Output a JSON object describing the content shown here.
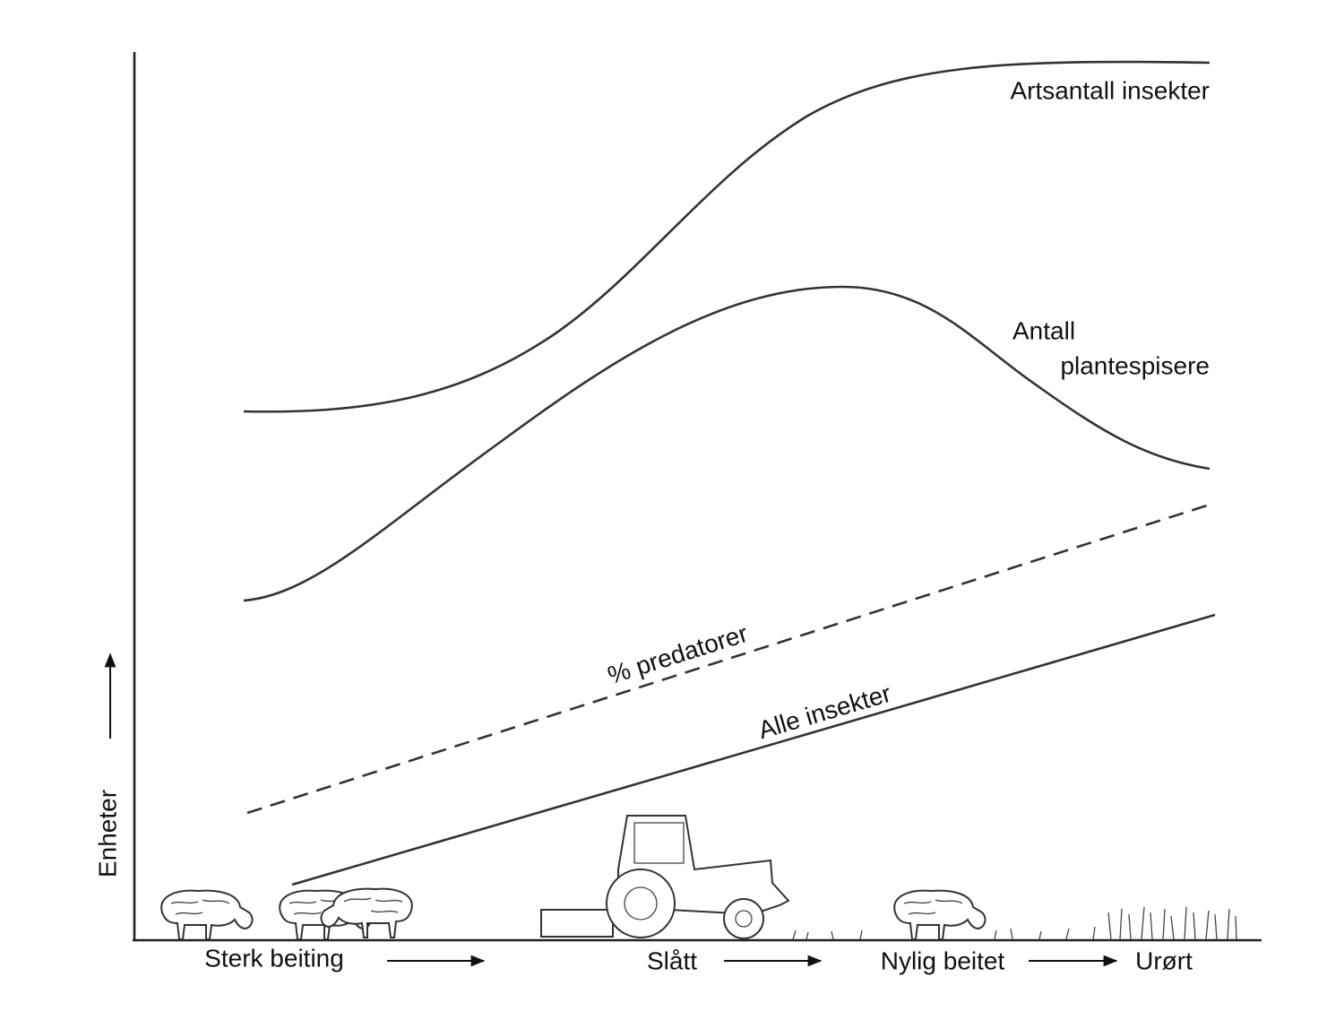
{
  "curves": {
    "species": "Artsantall insekter",
    "herbivores": [
      "Antall",
      "plantespisere"
    ],
    "predators": "% predatorer",
    "all": "Alle insekter"
  },
  "axis": {
    "y_label": "Enheter"
  },
  "stages": [
    "Sterk beiting",
    "Slått",
    "Nylig beitet",
    "Urørt"
  ]
}
